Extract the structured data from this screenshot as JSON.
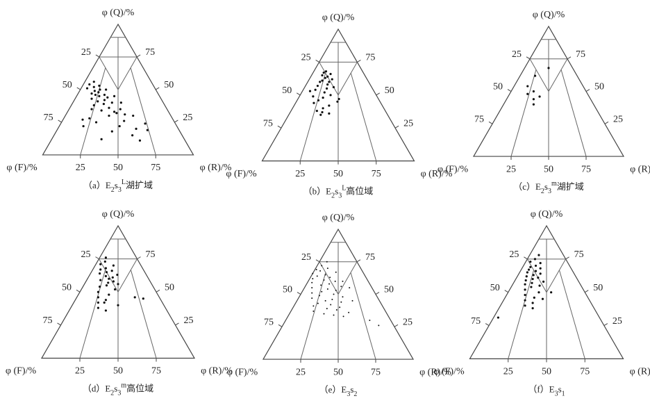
{
  "chart_data": [
    {
      "type": "ternary",
      "top_label": "φ (Q)/%",
      "left_label": "φ (F)/%",
      "right_label": "φ (R)/%",
      "left_ticks": [
        25,
        50,
        75
      ],
      "right_ticks": [
        25,
        50,
        75
      ],
      "bottom_ticks": [
        25,
        50,
        75
      ],
      "color": "#111",
      "marker_size": 1.6,
      "caption": [
        {
          "text": "（a）E"
        },
        {
          "text": "2",
          "shift": "sub"
        },
        {
          "text": "s"
        },
        {
          "text": "3",
          "shift": "sub"
        },
        {
          "text": "L",
          "shift": "sup"
        },
        {
          "text": "湖扩域"
        }
      ],
      "q": [
        56,
        54,
        53,
        52,
        51,
        50,
        50,
        49,
        48,
        47,
        46,
        46,
        45,
        44,
        43,
        42,
        41,
        40,
        39,
        38,
        36,
        35,
        34,
        33,
        31,
        30,
        28,
        27,
        26,
        25,
        24,
        22,
        20,
        19,
        18,
        15,
        12,
        11,
        30,
        35,
        40,
        45,
        32,
        22
      ],
      "f": [
        38,
        42,
        36,
        40,
        45,
        37,
        33,
        41,
        39,
        44,
        36,
        42,
        40,
        35,
        46,
        38,
        43,
        34,
        40,
        47,
        38,
        31,
        44,
        36,
        30,
        41,
        55,
        60,
        33,
        52,
        20,
        38,
        28,
        21,
        45,
        33,
        55,
        30,
        25,
        50,
        28,
        30,
        35,
        62
      ]
    },
    {
      "type": "ternary",
      "top_label": "φ (Q)/%",
      "left_label": "φ (F)/%",
      "right_label": "φ (R)/%",
      "left_ticks": [
        25,
        50,
        75
      ],
      "right_ticks": [
        25,
        50,
        75
      ],
      "bottom_ticks": [
        25,
        50,
        75
      ],
      "color": "#111",
      "marker_size": 1.6,
      "caption": [
        {
          "text": "（b）E"
        },
        {
          "text": "2",
          "shift": "sub"
        },
        {
          "text": "s"
        },
        {
          "text": "3",
          "shift": "sub"
        },
        {
          "text": "L",
          "shift": "sup"
        },
        {
          "text": "高位域"
        }
      ],
      "q": [
        68,
        67,
        66,
        65,
        64,
        63,
        62,
        61,
        60,
        60,
        58,
        57,
        56,
        55,
        54,
        52,
        50,
        49,
        48,
        46,
        45,
        44,
        42,
        40,
        38,
        37,
        36,
        35,
        47,
        53
      ],
      "f": [
        24,
        26,
        22,
        28,
        25,
        27,
        23,
        30,
        26,
        32,
        28,
        35,
        25,
        30,
        38,
        33,
        30,
        42,
        36,
        40,
        28,
        44,
        35,
        40,
        45,
        42,
        38,
        44,
        26,
        42
      ]
    },
    {
      "type": "ternary",
      "top_label": "φ (Q)/%",
      "left_label": "φ (F)/%",
      "right_label": "φ (R)/%",
      "left_ticks": [
        25,
        50,
        75
      ],
      "right_ticks": [
        25,
        50,
        75
      ],
      "bottom_ticks": [
        25,
        50,
        75
      ],
      "color": "#111",
      "marker_size": 1.6,
      "caption": [
        {
          "text": "（c）E"
        },
        {
          "text": "2",
          "shift": "sub"
        },
        {
          "text": "s"
        },
        {
          "text": "3",
          "shift": "sub"
        },
        {
          "text": "m",
          "shift": "sup"
        },
        {
          "text": "湖扩域"
        }
      ],
      "q": [
        68,
        62,
        54,
        50,
        48,
        46,
        44,
        40
      ],
      "f": [
        16,
        28,
        37,
        35,
        40,
        33,
        38,
        40
      ]
    },
    {
      "type": "ternary",
      "top_label": "φ (Q)/%",
      "left_label": "φ (F)/%",
      "right_label": "φ (R)/%",
      "left_ticks": [
        25,
        50,
        75
      ],
      "right_ticks": [
        25,
        50,
        75
      ],
      "bottom_ticks": [
        25,
        50,
        75
      ],
      "color": "#111",
      "marker_size": 1.6,
      "caption": [
        {
          "text": "（d）E"
        },
        {
          "text": "2",
          "shift": "sub"
        },
        {
          "text": "s"
        },
        {
          "text": "3",
          "shift": "sub"
        },
        {
          "text": "m",
          "shift": "sup"
        },
        {
          "text": "高位域"
        }
      ],
      "q": [
        76,
        73,
        71,
        70,
        68,
        67,
        66,
        65,
        64,
        63,
        62,
        61,
        60,
        59,
        58,
        57,
        56,
        55,
        54,
        52,
        50,
        48,
        46,
        45,
        44,
        42,
        40,
        38,
        36,
        46,
        42
      ],
      "f": [
        20,
        22,
        26,
        18,
        24,
        28,
        21,
        25,
        30,
        19,
        27,
        23,
        26,
        32,
        24,
        28,
        22,
        30,
        35,
        26,
        38,
        32,
        40,
        11,
        36,
        42,
        30,
        44,
        40,
        16,
        38
      ]
    },
    {
      "type": "ternary",
      "top_label": "φ (Q)/%",
      "left_label": "φ (F)/%",
      "right_label": "φ (R)/%",
      "left_ticks": [
        25,
        50,
        75
      ],
      "right_ticks": [
        25,
        50,
        75
      ],
      "bottom_ticks": [
        25,
        50,
        75
      ],
      "color": "#111",
      "marker_size": 1,
      "caption": [
        {
          "text": "（e）E"
        },
        {
          "text": "3",
          "shift": "sub"
        },
        {
          "text": "s"
        },
        {
          "text": "2",
          "shift": "sub"
        }
      ],
      "q": [
        75,
        72,
        70,
        69,
        68,
        67,
        66,
        65,
        64,
        63,
        62,
        61,
        60,
        59,
        58,
        57,
        56,
        55,
        54,
        53,
        52,
        51,
        50,
        49,
        48,
        47,
        46,
        45,
        44,
        43,
        42,
        41,
        40,
        39,
        38,
        37,
        36,
        35,
        34,
        30,
        26,
        33,
        45,
        55,
        60
      ],
      "f": [
        20,
        25,
        22,
        30,
        28,
        18,
        34,
        26,
        32,
        24,
        36,
        29,
        22,
        38,
        27,
        33,
        20,
        40,
        30,
        25,
        35,
        42,
        28,
        38,
        23,
        44,
        31,
        36,
        26,
        42,
        34,
        46,
        29,
        38,
        32,
        48,
        25,
        42,
        36,
        14,
        10,
        30,
        18,
        15,
        17
      ]
    },
    {
      "type": "ternary",
      "top_label": "φ (Q)/%",
      "left_label": "φ (F)/%",
      "right_label": "φ (R)/%",
      "left_ticks": [
        25,
        50,
        75
      ],
      "right_ticks": [
        25,
        50,
        75
      ],
      "bottom_ticks": [
        25,
        50,
        75
      ],
      "color": "#111",
      "marker_size": 1.6,
      "caption": [
        {
          "text": "（f）E"
        },
        {
          "text": "3",
          "shift": "sub"
        },
        {
          "text": "s"
        },
        {
          "text": "1",
          "shift": "sub"
        }
      ],
      "q": [
        78,
        75,
        73,
        72,
        70,
        69,
        68,
        67,
        66,
        65,
        64,
        63,
        62,
        61,
        60,
        59,
        58,
        57,
        56,
        55,
        54,
        52,
        50,
        48,
        46,
        44,
        42,
        40,
        38,
        31,
        45,
        50
      ],
      "f": [
        16,
        20,
        24,
        18,
        22,
        26,
        20,
        28,
        24,
        30,
        22,
        27,
        32,
        25,
        29,
        34,
        23,
        31,
        36,
        27,
        33,
        38,
        30,
        40,
        35,
        42,
        38,
        44,
        40,
        66,
        30,
        22
      ]
    }
  ]
}
